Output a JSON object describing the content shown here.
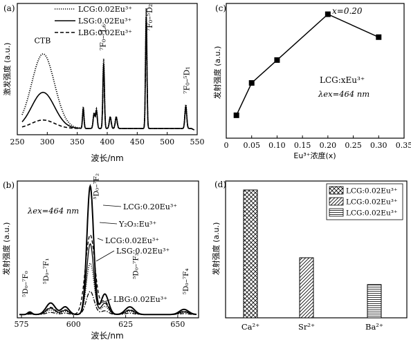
{
  "chart_data": [
    {
      "panel": "(a)",
      "type": "line",
      "xlabel": "波长/nm",
      "ylabel": "激发强度 (a.u.)",
      "xlim": [
        250,
        550
      ],
      "xticks": [
        250,
        300,
        350,
        400,
        450,
        500,
        550
      ],
      "legend": "top-left",
      "series": [
        {
          "name": "LCG:0.02Eu³⁺",
          "style": "dotted",
          "cbt_peak": 0.62,
          "scale": 1.0
        },
        {
          "name": "LSG:0.02Eu³⁺",
          "style": "solid",
          "cbt_peak": 0.3,
          "scale": 0.93
        },
        {
          "name": "LBG:0.02Eu³⁺",
          "style": "dashed",
          "cbt_peak": 0.07,
          "scale": 0.86
        }
      ],
      "peaks": [
        {
          "x": 360,
          "h": 0.18,
          "w": 1.2
        },
        {
          "x": 378,
          "h": 0.13,
          "w": 1.5
        },
        {
          "x": 382,
          "h": 0.16,
          "w": 1.4
        },
        {
          "x": 394,
          "h": 0.58,
          "w": 1.3
        },
        {
          "x": 405,
          "h": 0.1,
          "w": 1.6
        },
        {
          "x": 415,
          "h": 0.1,
          "w": 1.6
        },
        {
          "x": 465,
          "h": 1.0,
          "w": 1.2
        },
        {
          "x": 531,
          "h": 0.2,
          "w": 1.5
        }
      ],
      "annotations": [
        {
          "text": "CTB",
          "x": 292,
          "y": 0.72
        },
        {
          "text": "⁷F₀–⁵L₆",
          "x": 397,
          "y": 0.66,
          "rotate": true
        },
        {
          "text": "⁷F₀–⁵D₂",
          "x": 475,
          "y": 0.82,
          "rotate": true
        },
        {
          "text": "⁷F₀–⁵D₁",
          "x": 537,
          "y": 0.3,
          "rotate": true
        }
      ]
    },
    {
      "panel": "(b)",
      "type": "line",
      "xlabel": "波长/nm",
      "ylabel": "发射强度 (a.u.)",
      "xlim": [
        573,
        660
      ],
      "xticks": [
        575,
        600,
        625,
        650
      ],
      "lambda_label": "λex=464 nm",
      "series": [
        {
          "name": "LCG:0.20Eu³⁺",
          "style": "solid-bold",
          "scale": 1.0,
          "f2w": 1.6
        },
        {
          "name": "Y₂O₃:Eu³⁺",
          "style": "dashed",
          "scale": 0.62,
          "f2w": 2.3
        },
        {
          "name": "LCG:0.02Eu³⁺",
          "style": "solid",
          "scale": 0.55,
          "f2w": 1.7
        },
        {
          "name": "LSG:0.02Eu³⁺",
          "style": "dotted",
          "scale": 0.4,
          "f2w": 1.8
        },
        {
          "name": "LBG:0.02Eu³⁺",
          "style": "dash-dot",
          "scale": 0.18,
          "f2w": 1.9
        }
      ],
      "peaks": [
        {
          "x": 579,
          "h": 0.02,
          "w": 1.0
        },
        {
          "x": 589,
          "h": 0.09,
          "w": 2.2
        },
        {
          "x": 596,
          "h": 0.06,
          "w": 1.8
        },
        {
          "x": 608,
          "h": 1.0,
          "w": 0
        },
        {
          "x": 615,
          "h": 0.16,
          "w": 1.8
        },
        {
          "x": 627,
          "h": 0.06,
          "w": 2.2
        },
        {
          "x": 653,
          "h": 0.04,
          "w": 2.2
        }
      ],
      "annotations": [
        {
          "text": "⁵D₀–⁷F₀",
          "x": 578,
          "y": 0.14,
          "rotate": true
        },
        {
          "text": "⁵D₀–⁷F₁",
          "x": 588,
          "y": 0.24,
          "rotate": true
        },
        {
          "text": "⁵D₀–⁷F₂",
          "x": 612,
          "y": 0.9,
          "rotate": true
        },
        {
          "text": "⁵D₀–⁷F₃",
          "x": 631,
          "y": 0.28,
          "rotate": true
        },
        {
          "text": "⁵D₀–⁷F₄",
          "x": 655,
          "y": 0.16,
          "rotate": true
        }
      ]
    },
    {
      "panel": "(c)",
      "type": "line",
      "xlabel": "Eu³⁺浓度(x)",
      "ylabel": "发射强度 (a.u.)",
      "xlim": [
        0,
        0.35
      ],
      "ylim": [
        0,
        1
      ],
      "xticks": [
        "0",
        "0.05",
        "0.10",
        "0.15",
        "0.20",
        "0.25",
        "0.30",
        "0.35"
      ],
      "x": [
        0.02,
        0.05,
        0.1,
        0.2,
        0.3
      ],
      "y": [
        0.17,
        0.41,
        0.58,
        0.92,
        0.75
      ],
      "label_max": "x=0.20",
      "label_sample": "LCG:xEu³⁺",
      "label_lambda": "λex=464 nm"
    },
    {
      "panel": "(d)",
      "type": "bar",
      "ylabel": "发射强度 (a.u.)",
      "categories": [
        "Ca²⁺",
        "Sr²⁺",
        "Ba²⁺"
      ],
      "values": [
        1.0,
        0.47,
        0.26
      ],
      "ylim": [
        0,
        1.07
      ],
      "patterns": [
        "crosshatch",
        "diagonal",
        "horizontal"
      ],
      "legend": [
        "LCG:0.02Eu³⁺",
        "LCG:0.02Eu³⁺",
        "LCG:0.02Eu³⁺"
      ]
    }
  ]
}
